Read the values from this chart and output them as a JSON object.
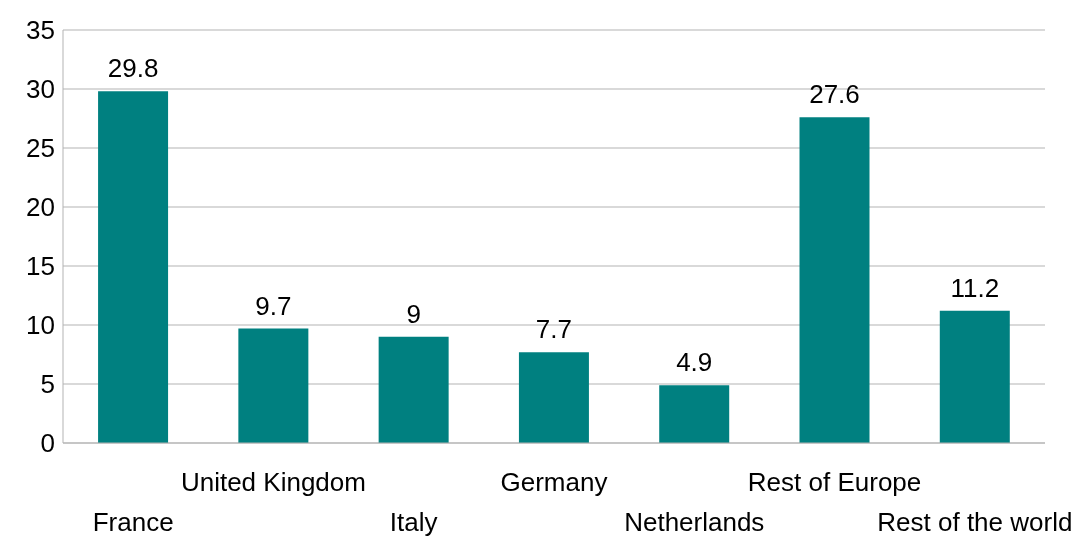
{
  "chart_data": {
    "type": "bar",
    "categories": [
      "France",
      "United Kingdom",
      "Italy",
      "Germany",
      "Netherlands",
      "Rest of Europe",
      "Rest of the world"
    ],
    "values": [
      29.8,
      9.7,
      9,
      7.7,
      4.9,
      27.6,
      11.2
    ],
    "color": "#008080",
    "ylim": [
      0,
      35
    ],
    "yticks": [
      0,
      5,
      10,
      15,
      20,
      25,
      30,
      35
    ],
    "grid": "y",
    "data_labels": true,
    "legend": false
  }
}
